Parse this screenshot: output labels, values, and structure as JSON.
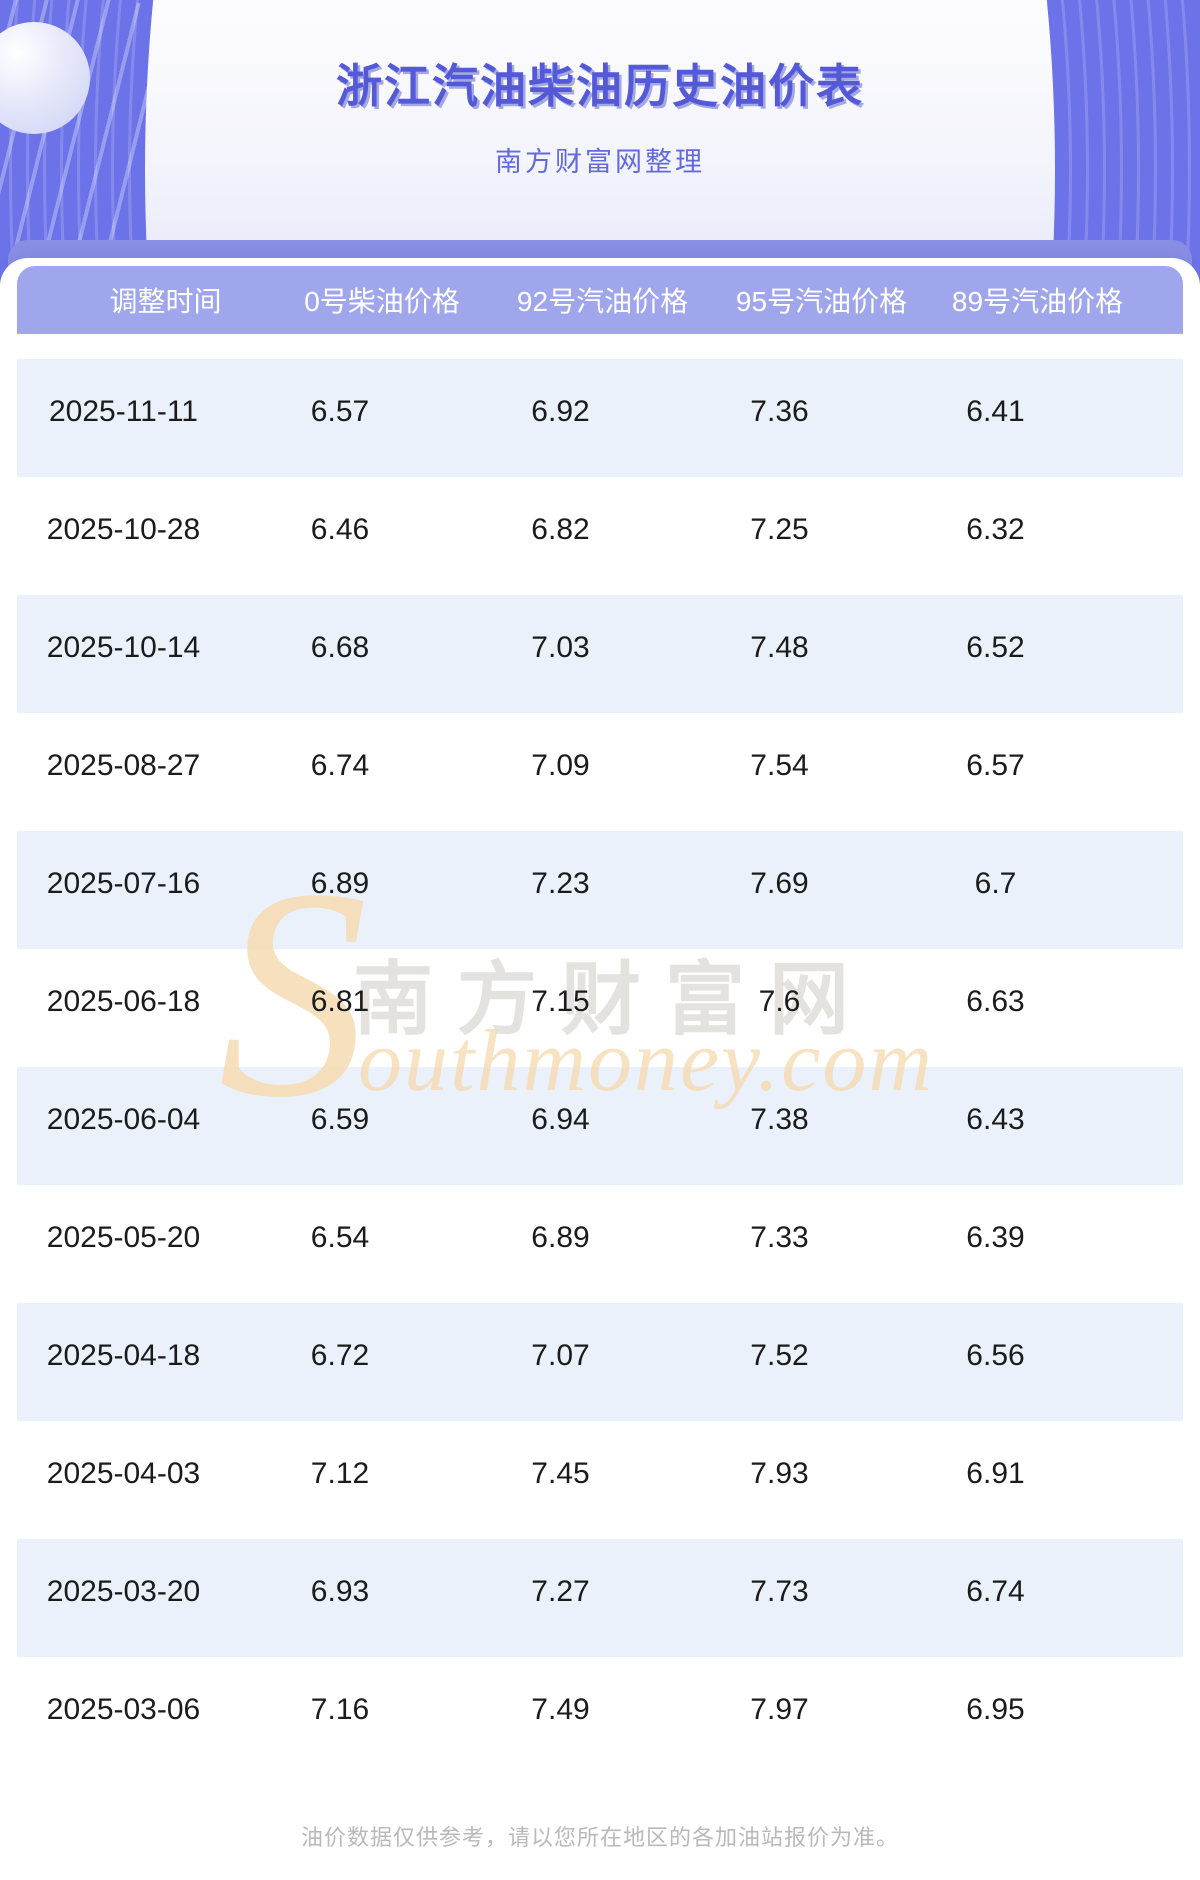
{
  "page": {
    "title": "浙江汽油柴油历史油价表",
    "subtitle": "南方财富网整理",
    "footer": "油价数据仅供参考，请以您所在地区的各加油站报价为准。"
  },
  "watermark": {
    "initial": "S",
    "cn_text": "南方财富网",
    "en_text": "outhmoney.com"
  },
  "table": {
    "columns": [
      "调整时间",
      "0号柴油价格",
      "92号汽油价格",
      "95号汽油价格",
      "89号汽油价格"
    ],
    "rows": [
      [
        "2025-11-11",
        "6.57",
        "6.92",
        "7.36",
        "6.41"
      ],
      [
        "2025-10-28",
        "6.46",
        "6.82",
        "7.25",
        "6.32"
      ],
      [
        "2025-10-14",
        "6.68",
        "7.03",
        "7.48",
        "6.52"
      ],
      [
        "2025-08-27",
        "6.74",
        "7.09",
        "7.54",
        "6.57"
      ],
      [
        "2025-07-16",
        "6.89",
        "7.23",
        "7.69",
        "6.7"
      ],
      [
        "2025-06-18",
        "6.81",
        "7.15",
        "7.6",
        "6.63"
      ],
      [
        "2025-06-04",
        "6.59",
        "6.94",
        "7.38",
        "6.43"
      ],
      [
        "2025-05-20",
        "6.54",
        "6.89",
        "7.33",
        "6.39"
      ],
      [
        "2025-04-18",
        "6.72",
        "7.07",
        "7.52",
        "6.56"
      ],
      [
        "2025-04-03",
        "7.12",
        "7.45",
        "7.93",
        "6.91"
      ],
      [
        "2025-03-20",
        "6.93",
        "7.27",
        "7.73",
        "6.74"
      ],
      [
        "2025-03-06",
        "7.16",
        "7.49",
        "7.97",
        "6.95"
      ]
    ]
  },
  "colors": {
    "accent": "#6C73E9",
    "header_band": "#A0A6EC",
    "dark_band": "#8A8FE4",
    "row_alt": "#EAF1FA",
    "title_text": "#5459D8",
    "subtitle_text": "#6268DE",
    "watermark_gray": "#E4E2DF",
    "watermark_peach": "#F6DBB2",
    "body_text": "#1B1B1B",
    "footer_text": "#B9B9B9"
  }
}
